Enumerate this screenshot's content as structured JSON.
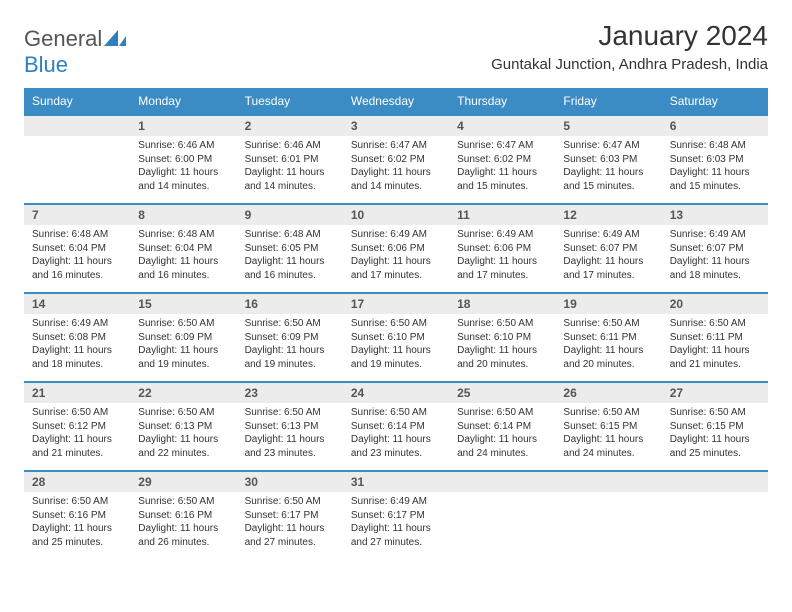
{
  "logo": {
    "part1": "General",
    "part2": "Blue"
  },
  "title": "January 2024",
  "location": "Guntakal Junction, Andhra Pradesh, India",
  "colors": {
    "header_bg": "#3b8bc4",
    "header_text": "#ffffff",
    "daynum_bg": "#ececec",
    "border": "#3b8bc4",
    "logo_blue": "#2d7fbf"
  },
  "day_headers": [
    "Sunday",
    "Monday",
    "Tuesday",
    "Wednesday",
    "Thursday",
    "Friday",
    "Saturday"
  ],
  "weeks": [
    [
      {
        "num": "",
        "sunrise": "",
        "sunset": "",
        "daylight": ""
      },
      {
        "num": "1",
        "sunrise": "Sunrise: 6:46 AM",
        "sunset": "Sunset: 6:00 PM",
        "daylight": "Daylight: 11 hours and 14 minutes."
      },
      {
        "num": "2",
        "sunrise": "Sunrise: 6:46 AM",
        "sunset": "Sunset: 6:01 PM",
        "daylight": "Daylight: 11 hours and 14 minutes."
      },
      {
        "num": "3",
        "sunrise": "Sunrise: 6:47 AM",
        "sunset": "Sunset: 6:02 PM",
        "daylight": "Daylight: 11 hours and 14 minutes."
      },
      {
        "num": "4",
        "sunrise": "Sunrise: 6:47 AM",
        "sunset": "Sunset: 6:02 PM",
        "daylight": "Daylight: 11 hours and 15 minutes."
      },
      {
        "num": "5",
        "sunrise": "Sunrise: 6:47 AM",
        "sunset": "Sunset: 6:03 PM",
        "daylight": "Daylight: 11 hours and 15 minutes."
      },
      {
        "num": "6",
        "sunrise": "Sunrise: 6:48 AM",
        "sunset": "Sunset: 6:03 PM",
        "daylight": "Daylight: 11 hours and 15 minutes."
      }
    ],
    [
      {
        "num": "7",
        "sunrise": "Sunrise: 6:48 AM",
        "sunset": "Sunset: 6:04 PM",
        "daylight": "Daylight: 11 hours and 16 minutes."
      },
      {
        "num": "8",
        "sunrise": "Sunrise: 6:48 AM",
        "sunset": "Sunset: 6:04 PM",
        "daylight": "Daylight: 11 hours and 16 minutes."
      },
      {
        "num": "9",
        "sunrise": "Sunrise: 6:48 AM",
        "sunset": "Sunset: 6:05 PM",
        "daylight": "Daylight: 11 hours and 16 minutes."
      },
      {
        "num": "10",
        "sunrise": "Sunrise: 6:49 AM",
        "sunset": "Sunset: 6:06 PM",
        "daylight": "Daylight: 11 hours and 17 minutes."
      },
      {
        "num": "11",
        "sunrise": "Sunrise: 6:49 AM",
        "sunset": "Sunset: 6:06 PM",
        "daylight": "Daylight: 11 hours and 17 minutes."
      },
      {
        "num": "12",
        "sunrise": "Sunrise: 6:49 AM",
        "sunset": "Sunset: 6:07 PM",
        "daylight": "Daylight: 11 hours and 17 minutes."
      },
      {
        "num": "13",
        "sunrise": "Sunrise: 6:49 AM",
        "sunset": "Sunset: 6:07 PM",
        "daylight": "Daylight: 11 hours and 18 minutes."
      }
    ],
    [
      {
        "num": "14",
        "sunrise": "Sunrise: 6:49 AM",
        "sunset": "Sunset: 6:08 PM",
        "daylight": "Daylight: 11 hours and 18 minutes."
      },
      {
        "num": "15",
        "sunrise": "Sunrise: 6:50 AM",
        "sunset": "Sunset: 6:09 PM",
        "daylight": "Daylight: 11 hours and 19 minutes."
      },
      {
        "num": "16",
        "sunrise": "Sunrise: 6:50 AM",
        "sunset": "Sunset: 6:09 PM",
        "daylight": "Daylight: 11 hours and 19 minutes."
      },
      {
        "num": "17",
        "sunrise": "Sunrise: 6:50 AM",
        "sunset": "Sunset: 6:10 PM",
        "daylight": "Daylight: 11 hours and 19 minutes."
      },
      {
        "num": "18",
        "sunrise": "Sunrise: 6:50 AM",
        "sunset": "Sunset: 6:10 PM",
        "daylight": "Daylight: 11 hours and 20 minutes."
      },
      {
        "num": "19",
        "sunrise": "Sunrise: 6:50 AM",
        "sunset": "Sunset: 6:11 PM",
        "daylight": "Daylight: 11 hours and 20 minutes."
      },
      {
        "num": "20",
        "sunrise": "Sunrise: 6:50 AM",
        "sunset": "Sunset: 6:11 PM",
        "daylight": "Daylight: 11 hours and 21 minutes."
      }
    ],
    [
      {
        "num": "21",
        "sunrise": "Sunrise: 6:50 AM",
        "sunset": "Sunset: 6:12 PM",
        "daylight": "Daylight: 11 hours and 21 minutes."
      },
      {
        "num": "22",
        "sunrise": "Sunrise: 6:50 AM",
        "sunset": "Sunset: 6:13 PM",
        "daylight": "Daylight: 11 hours and 22 minutes."
      },
      {
        "num": "23",
        "sunrise": "Sunrise: 6:50 AM",
        "sunset": "Sunset: 6:13 PM",
        "daylight": "Daylight: 11 hours and 23 minutes."
      },
      {
        "num": "24",
        "sunrise": "Sunrise: 6:50 AM",
        "sunset": "Sunset: 6:14 PM",
        "daylight": "Daylight: 11 hours and 23 minutes."
      },
      {
        "num": "25",
        "sunrise": "Sunrise: 6:50 AM",
        "sunset": "Sunset: 6:14 PM",
        "daylight": "Daylight: 11 hours and 24 minutes."
      },
      {
        "num": "26",
        "sunrise": "Sunrise: 6:50 AM",
        "sunset": "Sunset: 6:15 PM",
        "daylight": "Daylight: 11 hours and 24 minutes."
      },
      {
        "num": "27",
        "sunrise": "Sunrise: 6:50 AM",
        "sunset": "Sunset: 6:15 PM",
        "daylight": "Daylight: 11 hours and 25 minutes."
      }
    ],
    [
      {
        "num": "28",
        "sunrise": "Sunrise: 6:50 AM",
        "sunset": "Sunset: 6:16 PM",
        "daylight": "Daylight: 11 hours and 25 minutes."
      },
      {
        "num": "29",
        "sunrise": "Sunrise: 6:50 AM",
        "sunset": "Sunset: 6:16 PM",
        "daylight": "Daylight: 11 hours and 26 minutes."
      },
      {
        "num": "30",
        "sunrise": "Sunrise: 6:50 AM",
        "sunset": "Sunset: 6:17 PM",
        "daylight": "Daylight: 11 hours and 27 minutes."
      },
      {
        "num": "31",
        "sunrise": "Sunrise: 6:49 AM",
        "sunset": "Sunset: 6:17 PM",
        "daylight": "Daylight: 11 hours and 27 minutes."
      },
      {
        "num": "",
        "sunrise": "",
        "sunset": "",
        "daylight": ""
      },
      {
        "num": "",
        "sunrise": "",
        "sunset": "",
        "daylight": ""
      },
      {
        "num": "",
        "sunrise": "",
        "sunset": "",
        "daylight": ""
      }
    ]
  ]
}
